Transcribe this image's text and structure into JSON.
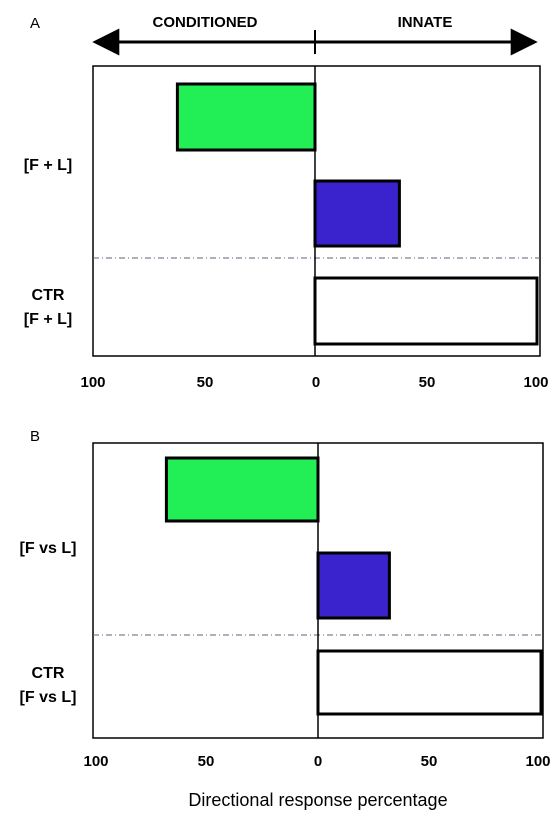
{
  "chart_data": {
    "type": "bar",
    "orientation": "horizontal",
    "header_left": "CONDITIONED",
    "header_right": "INNATE",
    "xlabel": "Directional response percentage",
    "x_tick_labels": [
      "100",
      "50",
      "0",
      "50",
      "100"
    ],
    "xlim": [
      -100,
      100
    ],
    "grid": false,
    "panels": [
      {
        "id": "A",
        "letter": "A",
        "groups": [
          {
            "label_lines": [
              "[F + L]"
            ]
          },
          {
            "label_lines": [
              "CTR",
              "[F + L]"
            ]
          }
        ],
        "bars": [
          {
            "value": -62,
            "color": "#22ee55",
            "group": 0
          },
          {
            "value": 38,
            "color": "#3a22cc",
            "group": 0
          },
          {
            "value": 100,
            "color": "#ffffff",
            "group": 1
          }
        ]
      },
      {
        "id": "B",
        "letter": "B",
        "groups": [
          {
            "label_lines": [
              "[F vs L]"
            ]
          },
          {
            "label_lines": [
              "CTR",
              "[F vs L]"
            ]
          }
        ],
        "bars": [
          {
            "value": -68,
            "color": "#22ee55",
            "group": 0
          },
          {
            "value": 32,
            "color": "#3a22cc",
            "group": 0
          },
          {
            "value": 100,
            "color": "#ffffff",
            "group": 1
          }
        ]
      }
    ]
  }
}
